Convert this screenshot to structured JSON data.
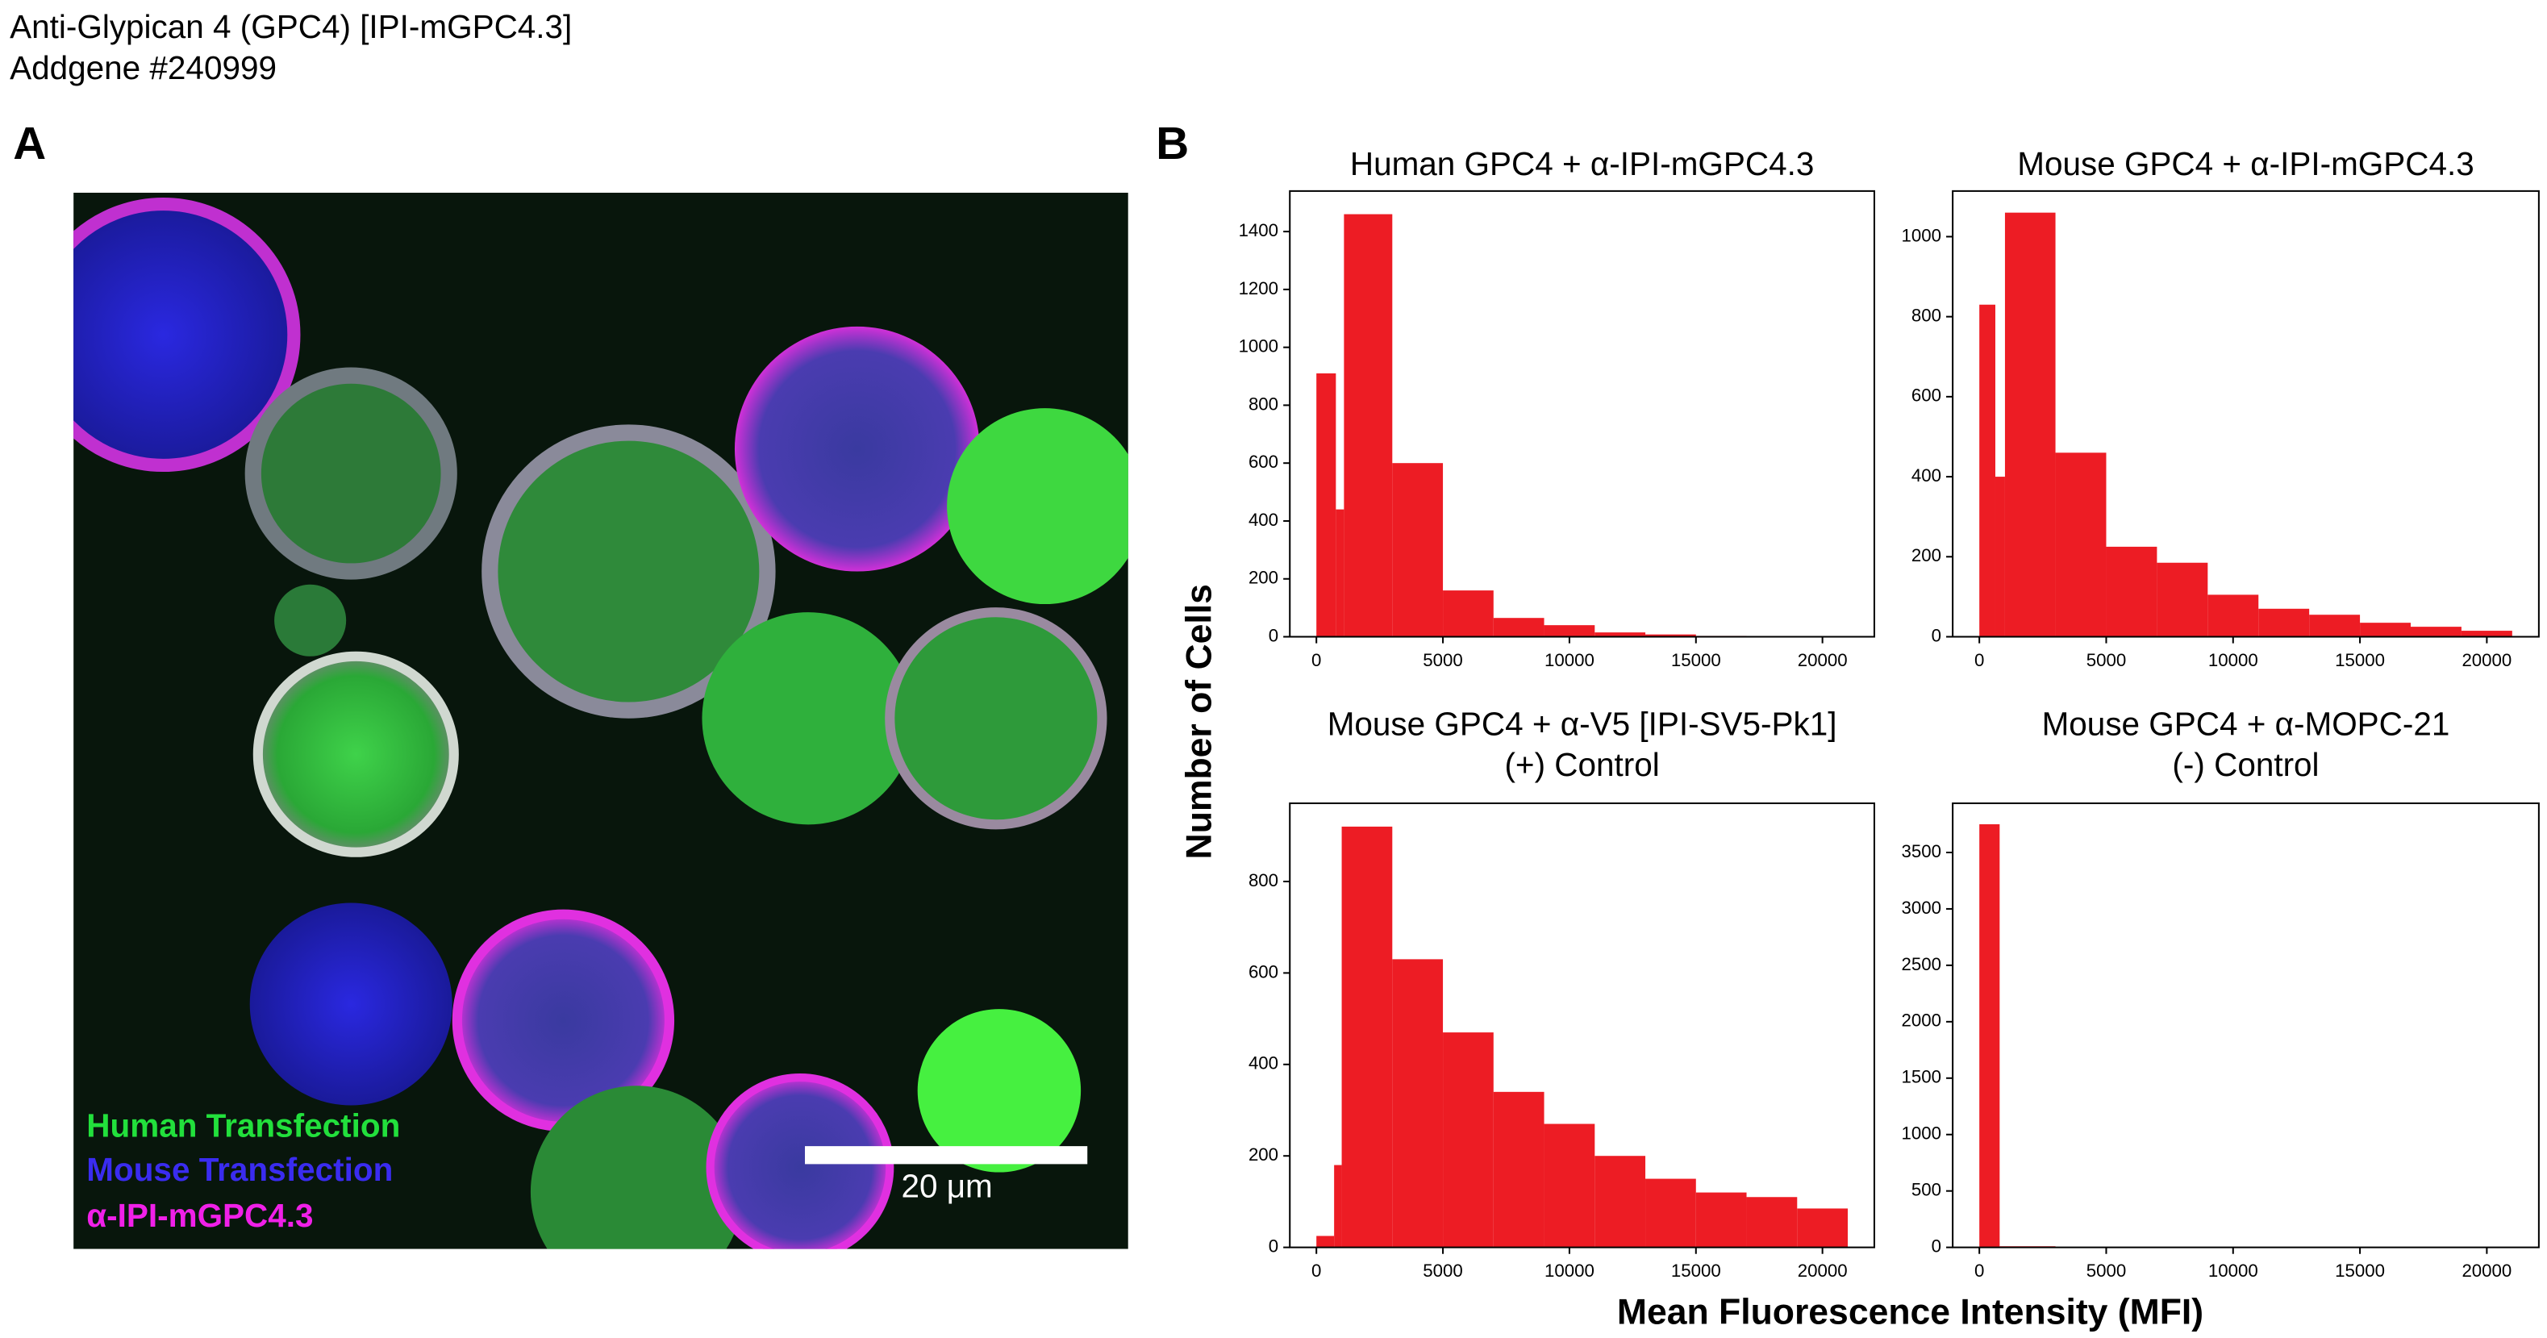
{
  "header": {
    "title": "Anti-Glypican 4 (GPC4) [IPI-mGPC4.3]",
    "subtitle": "Addgene #240999"
  },
  "panels": {
    "a": "A",
    "b": "B"
  },
  "image": {
    "legend": [
      "Human Transfection",
      "Mouse Transfection",
      "α-IPI-mGPC4.3"
    ],
    "legend_colors": [
      "#22e03c",
      "#3a2cf0",
      "#f020e8"
    ],
    "scale_bar": "20 μm"
  },
  "shared": {
    "ylabel": "Number of Cells",
    "xlabel": "Mean Fluorescence Intensity (MFI)"
  },
  "chart_data": [
    {
      "type": "histogram",
      "title": "Human GPC4 + α-IPI-mGPC4.3",
      "color": "#ed1c24",
      "grid": false,
      "bins": [
        0,
        770,
        1090,
        3000,
        5000,
        7000,
        9000,
        11000,
        13000,
        15000,
        17000,
        19000,
        21000
      ],
      "values": [
        910,
        440,
        1460,
        600,
        160,
        65,
        40,
        15,
        8,
        3,
        2,
        1
      ],
      "xlim": [
        -1050,
        22050
      ],
      "ylim": [
        0,
        1540
      ],
      "xticks": [
        0,
        5000,
        10000,
        15000,
        20000
      ],
      "yticks": [
        0,
        200,
        400,
        600,
        800,
        1000,
        1200,
        1400
      ]
    },
    {
      "type": "histogram",
      "title": "Mouse GPC4 + α-IPI-mGPC4.3",
      "color": "#ed1c24",
      "grid": false,
      "bins": [
        0,
        630,
        1010,
        3000,
        5000,
        7000,
        9000,
        11000,
        13000,
        15000,
        17000,
        19000,
        21000
      ],
      "values": [
        830,
        400,
        1060,
        460,
        225,
        185,
        105,
        70,
        55,
        35,
        25,
        15
      ],
      "xlim": [
        -1050,
        22050
      ],
      "ylim": [
        0,
        1114
      ],
      "xticks": [
        0,
        5000,
        10000,
        15000,
        20000
      ],
      "yticks": [
        0,
        200,
        400,
        600,
        800,
        1000
      ]
    },
    {
      "type": "histogram",
      "title": "Mouse GPC4 + α-V5 [IPI-SV5-Pk1]",
      "subtitle": "(+) Control",
      "color": "#ed1c24",
      "grid": false,
      "bins": [
        0,
        700,
        1000,
        3000,
        5000,
        7000,
        9000,
        11000,
        13000,
        15000,
        17000,
        19000,
        21000
      ],
      "values": [
        25,
        180,
        920,
        630,
        470,
        340,
        270,
        200,
        150,
        120,
        110,
        85
      ],
      "xlim": [
        -1050,
        22050
      ],
      "ylim": [
        0,
        971
      ],
      "xticks": [
        0,
        5000,
        10000,
        15000,
        20000
      ],
      "yticks": [
        0,
        200,
        400,
        600,
        800
      ]
    },
    {
      "type": "histogram",
      "title": "Mouse GPC4 + α-MOPC-21",
      "subtitle": "(-) Control",
      "color": "#ed1c24",
      "grid": false,
      "bins": [
        0,
        800,
        3000
      ],
      "values": [
        3750,
        10
      ],
      "xlim": [
        -1050,
        22050
      ],
      "ylim": [
        0,
        3936
      ],
      "xticks": [
        0,
        5000,
        10000,
        15000,
        20000
      ],
      "yticks": [
        0,
        500,
        1000,
        1500,
        2000,
        2500,
        3000,
        3500
      ]
    }
  ]
}
